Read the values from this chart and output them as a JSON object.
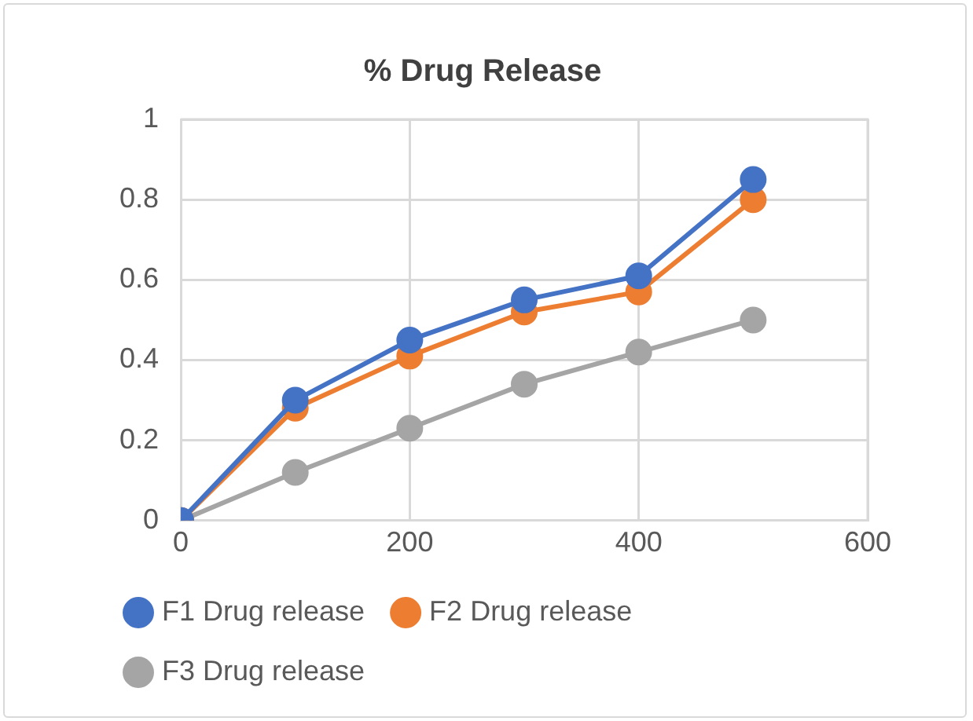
{
  "chart_data": {
    "type": "line",
    "title": "% Drug Release",
    "x": [
      0,
      100,
      200,
      300,
      400,
      500
    ],
    "series": [
      {
        "name": "F1 Drug release",
        "color": "#4472c4",
        "values": [
          0,
          0.3,
          0.45,
          0.55,
          0.61,
          0.85
        ]
      },
      {
        "name": "F2 Drug release",
        "color": "#ed7d31",
        "values": [
          0,
          0.28,
          0.41,
          0.52,
          0.57,
          0.8
        ]
      },
      {
        "name": "F3 Drug release",
        "color": "#a5a5a5",
        "values": [
          0,
          0.12,
          0.23,
          0.34,
          0.42,
          0.5
        ]
      }
    ],
    "xlim": [
      0,
      600
    ],
    "xticks": [
      0,
      200,
      400,
      600
    ],
    "ylim": [
      0,
      1
    ],
    "yticks": [
      0,
      0.2,
      0.4,
      0.6,
      0.8,
      1
    ],
    "grid": true,
    "legend": "bottom",
    "marker": "circle",
    "line_style": "solid"
  }
}
